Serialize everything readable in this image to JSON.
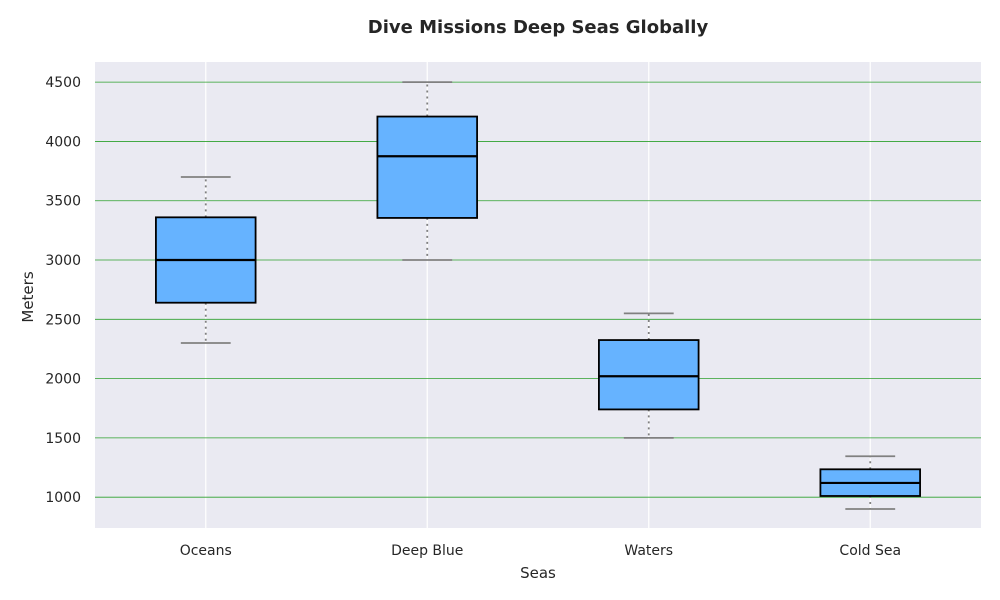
{
  "chart_data": {
    "type": "box",
    "title": "Dive Missions Deep Seas Globally",
    "xlabel": "Seas",
    "ylabel": "Meters",
    "ylim": [
      740,
      4670
    ],
    "yticks": [
      1000,
      1500,
      2000,
      2500,
      3000,
      3500,
      4000,
      4500
    ],
    "categories": [
      "Oceans",
      "Deep Blue",
      "Waters",
      "Cold Sea"
    ],
    "boxes": [
      {
        "category": "Oceans",
        "whisker_low": 2300,
        "q1": 2640,
        "median": 3000,
        "q3": 3360,
        "whisker_high": 3700
      },
      {
        "category": "Deep Blue",
        "whisker_low": 3000,
        "q1": 3355,
        "median": 3875,
        "q3": 4210,
        "whisker_high": 4500
      },
      {
        "category": "Waters",
        "whisker_low": 1500,
        "q1": 1740,
        "median": 2020,
        "q3": 2325,
        "whisker_high": 2550
      },
      {
        "category": "Cold Sea",
        "whisker_low": 900,
        "q1": 1010,
        "median": 1120,
        "q3": 1235,
        "whisker_high": 1345
      }
    ],
    "grid": true,
    "colors": {
      "plot_background": "#eaeaf2",
      "box_fill": "#66b3ff",
      "box_edge": "#000000",
      "whisker": "#808080",
      "horizontal_grid": "#2ca02c",
      "vertical_grid": "#ffffff"
    }
  }
}
